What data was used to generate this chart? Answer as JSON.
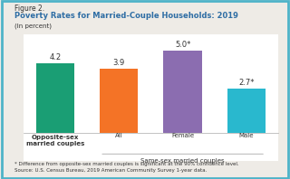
{
  "figure_label": "Figure 2.",
  "title": "Poverty Rates for Married-Couple Households: 2019",
  "subtitle": "(In percent)",
  "categories": [
    "Opposite-sex\nmarried couples",
    "All",
    "Female",
    "Male"
  ],
  "values": [
    4.2,
    3.9,
    5.0,
    2.7
  ],
  "bar_labels": [
    "4.2",
    "3.9",
    "5.0*",
    "2.7*"
  ],
  "bar_colors": [
    "#1a9e74",
    "#f47326",
    "#8b6db0",
    "#29b8ce"
  ],
  "ylim": [
    0,
    6.0
  ],
  "footnote_line1": "* Difference from opposite-sex married couples is significant at the 90% confidence level.",
  "footnote_line2": "Source: U.S. Census Bureau, 2019 American Community Survey 1-year data.",
  "background_color": "#eeebe6",
  "plot_bg_color": "#ffffff",
  "border_color": "#4eb3c8",
  "title_color": "#2e6da4",
  "label_color": "#333333"
}
